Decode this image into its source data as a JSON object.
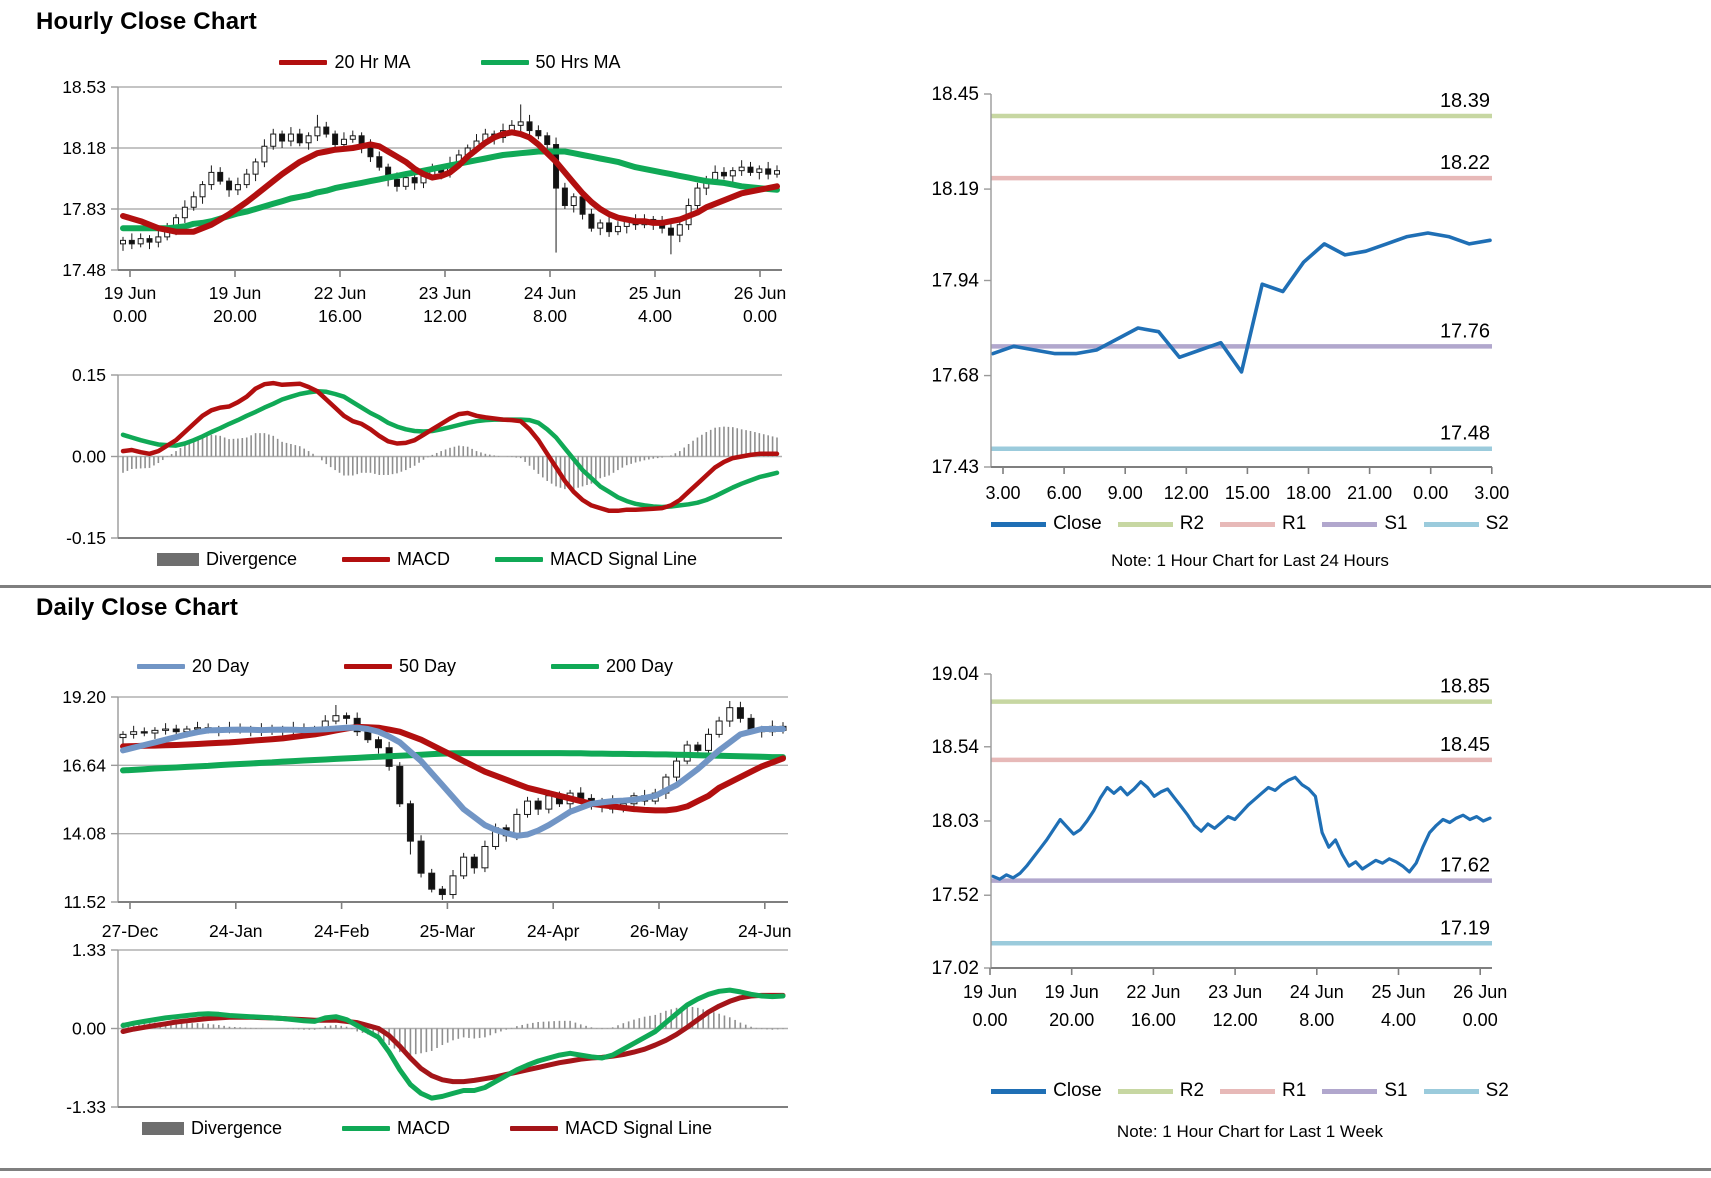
{
  "section1_title": "Hourly Close Chart",
  "section2_title": "Daily Close Chart",
  "colors": {
    "dark_red": "#b20f0f",
    "signal_red": "#a41519",
    "green": "#10a956",
    "ma20_blue": "#7195c5",
    "close_blue": "#1f6fb5",
    "r2_green": "#c7d7a2",
    "r1_pink": "#e7b9b8",
    "s1_purple": "#b1a7cd",
    "s2_blue": "#9bcbdc",
    "divergence_bar": "#8f8f8f",
    "divergence_swatch": "#6e6e6e",
    "grid": "#b0b0b0",
    "axis": "#7f7f7f"
  },
  "chart_data": [
    {
      "type": "candlestick",
      "name": "hourly-close-candlestick",
      "legend": [
        {
          "label": "20 Hr MA",
          "color": "#b20f0f"
        },
        {
          "label": "50 Hrs MA",
          "color": "#10a956"
        }
      ],
      "ylim": [
        17.48,
        18.53
      ],
      "ytick_labels": [
        "18.53",
        "18.18",
        "17.83",
        "17.48"
      ],
      "ytick_values": [
        18.53,
        18.18,
        17.83,
        17.48
      ],
      "xtick_labels_line1": [
        "19 Jun",
        "19 Jun",
        "22 Jun",
        "23 Jun",
        "24 Jun",
        "25 Jun",
        "26 Jun"
      ],
      "xtick_labels_line2": [
        "0.00",
        "20.00",
        "16.00",
        "12.00",
        "8.00",
        "4.00",
        "0.00"
      ],
      "closes": [
        17.65,
        17.63,
        17.66,
        17.64,
        17.67,
        17.72,
        17.78,
        17.84,
        17.9,
        17.97,
        18.04,
        17.99,
        17.94,
        17.97,
        18.03,
        18.1,
        18.19,
        18.26,
        18.22,
        18.26,
        18.21,
        18.25,
        18.3,
        18.26,
        18.2,
        18.23,
        18.25,
        18.19,
        18.13,
        18.07,
        18.0,
        17.96,
        18.01,
        17.98,
        18.02,
        18.06,
        18.04,
        18.09,
        18.14,
        18.18,
        18.22,
        18.26,
        18.24,
        18.28,
        18.31,
        18.33,
        18.28,
        18.25,
        18.2,
        17.95,
        17.85,
        17.9,
        17.8,
        17.72,
        17.75,
        17.7,
        17.73,
        17.76,
        17.74,
        17.77,
        17.75,
        17.72,
        17.68,
        17.74,
        17.85,
        17.95,
        18.0,
        18.04,
        18.02,
        18.05,
        18.07,
        18.04,
        18.06,
        18.03,
        18.05
      ],
      "candle_overrides": {
        "22": {
          "high": 18.37
        },
        "45": {
          "high": 18.43
        },
        "49": {
          "low": 17.58
        },
        "62": {
          "low": 17.57
        }
      },
      "ma20": [
        17.79,
        17.775,
        17.76,
        17.74,
        17.72,
        17.71,
        17.7,
        17.7,
        17.7,
        17.72,
        17.74,
        17.77,
        17.8,
        17.835,
        17.87,
        17.91,
        17.95,
        17.99,
        18.03,
        18.065,
        18.1,
        18.125,
        18.15,
        18.16,
        18.17,
        18.175,
        18.18,
        18.19,
        18.2,
        18.19,
        18.16,
        18.13,
        18.1,
        18.06,
        18.03,
        18.01,
        18.02,
        18.04,
        18.08,
        18.13,
        18.17,
        18.21,
        18.24,
        18.26,
        18.27,
        18.26,
        18.24,
        18.2,
        18.15,
        18.1,
        18.04,
        17.98,
        17.92,
        17.87,
        17.83,
        17.8,
        17.78,
        17.77,
        17.76,
        17.76,
        17.75,
        17.75,
        17.76,
        17.77,
        17.79,
        17.81,
        17.84,
        17.86,
        17.88,
        17.9,
        17.92,
        17.93,
        17.94,
        17.95,
        17.96
      ],
      "ma50": [
        17.72,
        17.72,
        17.72,
        17.72,
        17.72,
        17.72,
        17.725,
        17.73,
        17.745,
        17.75,
        17.76,
        17.775,
        17.79,
        17.805,
        17.815,
        17.83,
        17.845,
        17.86,
        17.875,
        17.89,
        17.9,
        17.91,
        17.925,
        17.935,
        17.95,
        17.96,
        17.97,
        17.98,
        17.99,
        18.0,
        18.01,
        18.02,
        18.03,
        18.04,
        18.05,
        18.06,
        18.07,
        18.08,
        18.09,
        18.1,
        18.11,
        18.12,
        18.13,
        18.14,
        18.145,
        18.15,
        18.155,
        18.16,
        18.16,
        18.16,
        18.16,
        18.15,
        18.14,
        18.13,
        18.12,
        18.11,
        18.1,
        18.085,
        18.07,
        18.06,
        18.05,
        18.04,
        18.03,
        18.02,
        18.01,
        18.0,
        17.99,
        17.985,
        17.98,
        17.97,
        17.96,
        17.955,
        17.95,
        17.945,
        17.94
      ]
    },
    {
      "type": "macd",
      "name": "hourly-macd",
      "legend": [
        {
          "label": "Divergence",
          "color": "#6e6e6e"
        },
        {
          "label": "MACD",
          "color": "#b20f0f"
        },
        {
          "label": "MACD Signal Line",
          "color": "#10a956"
        }
      ],
      "ylim": [
        -0.15,
        0.15
      ],
      "ytick_labels": [
        "0.15",
        "0.00",
        "-0.15"
      ],
      "ytick_values": [
        0.15,
        0.0,
        -0.15
      ],
      "macd": [
        0.01,
        0.012,
        0.008,
        0.005,
        0.01,
        0.02,
        0.03,
        0.045,
        0.06,
        0.075,
        0.085,
        0.09,
        0.092,
        0.1,
        0.11,
        0.125,
        0.133,
        0.135,
        0.132,
        0.133,
        0.134,
        0.128,
        0.12,
        0.105,
        0.09,
        0.075,
        0.065,
        0.06,
        0.05,
        0.038,
        0.028,
        0.024,
        0.025,
        0.03,
        0.04,
        0.05,
        0.06,
        0.07,
        0.078,
        0.08,
        0.075,
        0.072,
        0.07,
        0.068,
        0.067,
        0.065,
        0.05,
        0.03,
        0.005,
        -0.02,
        -0.045,
        -0.065,
        -0.08,
        -0.09,
        -0.095,
        -0.1,
        -0.1,
        -0.098,
        -0.098,
        -0.097,
        -0.096,
        -0.095,
        -0.09,
        -0.08,
        -0.065,
        -0.05,
        -0.035,
        -0.02,
        -0.01,
        -0.003,
        0.0,
        0.003,
        0.005,
        0.005,
        0.005
      ],
      "signal": [
        0.04,
        0.035,
        0.03,
        0.026,
        0.022,
        0.021,
        0.02,
        0.024,
        0.03,
        0.037,
        0.045,
        0.052,
        0.06,
        0.067,
        0.075,
        0.082,
        0.09,
        0.097,
        0.105,
        0.11,
        0.115,
        0.118,
        0.12,
        0.119,
        0.115,
        0.11,
        0.1,
        0.09,
        0.08,
        0.072,
        0.062,
        0.055,
        0.05,
        0.047,
        0.046,
        0.047,
        0.05,
        0.054,
        0.058,
        0.062,
        0.065,
        0.067,
        0.068,
        0.068,
        0.068,
        0.068,
        0.067,
        0.062,
        0.05,
        0.035,
        0.015,
        -0.005,
        -0.025,
        -0.04,
        -0.055,
        -0.065,
        -0.075,
        -0.082,
        -0.087,
        -0.09,
        -0.092,
        -0.093,
        -0.092,
        -0.09,
        -0.088,
        -0.085,
        -0.08,
        -0.073,
        -0.065,
        -0.057,
        -0.05,
        -0.044,
        -0.038,
        -0.034,
        -0.03
      ]
    },
    {
      "type": "line",
      "name": "hourly-pivot-chart",
      "note": "Note: 1 Hour Chart for Last 24 Hours",
      "legend": [
        {
          "label": "Close",
          "color": "#1f6fb5"
        },
        {
          "label": "R2",
          "color": "#c7d7a2"
        },
        {
          "label": "R1",
          "color": "#e7b9b8"
        },
        {
          "label": "S1",
          "color": "#b1a7cd"
        },
        {
          "label": "S2",
          "color": "#9bcbdc"
        }
      ],
      "ylim": [
        17.43,
        18.45
      ],
      "ytick_labels": [
        "18.45",
        "18.19",
        "17.94",
        "17.68",
        "17.43"
      ],
      "ytick_values": [
        18.45,
        18.19,
        17.94,
        17.68,
        17.43
      ],
      "xtick_labels": [
        "3.00",
        "6.00",
        "9.00",
        "12.00",
        "15.00",
        "18.00",
        "21.00",
        "0.00",
        "3.00"
      ],
      "closes": [
        17.74,
        17.76,
        17.75,
        17.74,
        17.74,
        17.75,
        17.78,
        17.81,
        17.8,
        17.73,
        17.75,
        17.77,
        17.69,
        17.93,
        17.91,
        17.99,
        18.04,
        18.01,
        18.02,
        18.04,
        18.06,
        18.07,
        18.06,
        18.04,
        18.05
      ],
      "pivots": [
        {
          "label": "R2",
          "value": 18.39,
          "display": "18.39",
          "color": "#c7d7a2"
        },
        {
          "label": "R1",
          "value": 18.22,
          "display": "18.22",
          "color": "#e7b9b8"
        },
        {
          "label": "S1",
          "value": 17.76,
          "display": "17.76",
          "color": "#b1a7cd"
        },
        {
          "label": "S2",
          "value": 17.48,
          "display": "17.48",
          "color": "#9bcbdc"
        }
      ]
    },
    {
      "type": "candlestick",
      "name": "daily-close-candlestick",
      "legend": [
        {
          "label": "20 Day",
          "color": "#7195c5"
        },
        {
          "label": "50 Day",
          "color": "#b20f0f"
        },
        {
          "label": "200 Day",
          "color": "#10a956"
        }
      ],
      "ylim": [
        11.52,
        19.2
      ],
      "ytick_labels": [
        "19.20",
        "16.64",
        "14.08",
        "11.52"
      ],
      "ytick_values": [
        19.2,
        16.64,
        14.08,
        11.52
      ],
      "xtick_labels_line1": [
        "27-Dec",
        "24-Jan",
        "24-Feb",
        "25-Mar",
        "24-Apr",
        "26-May",
        "24-Jun"
      ],
      "closes": [
        17.8,
        17.9,
        17.85,
        17.95,
        18.0,
        17.9,
        18.0,
        18.05,
        17.95,
        18.0,
        18.05,
        17.95,
        18.0,
        17.9,
        18.0,
        17.95,
        18.05,
        17.95,
        18.0,
        18.3,
        18.5,
        18.4,
        17.9,
        17.6,
        17.3,
        16.6,
        15.2,
        13.8,
        12.6,
        12.0,
        11.8,
        12.5,
        13.2,
        12.8,
        13.6,
        14.3,
        14.0,
        14.8,
        15.3,
        15.0,
        15.5,
        15.2,
        15.6,
        15.4,
        15.1,
        15.3,
        15.0,
        15.2,
        15.5,
        15.3,
        15.6,
        16.2,
        16.8,
        17.4,
        17.2,
        17.8,
        18.3,
        18.8,
        18.4,
        18.0,
        17.9,
        18.1,
        17.95
      ],
      "candle_overrides": {
        "20": {
          "high": 18.9
        },
        "27": {
          "low": 13.3
        },
        "30": {
          "low": 11.6
        },
        "57": {
          "high": 19.05
        }
      },
      "ma20": [
        17.2,
        17.3,
        17.4,
        17.5,
        17.6,
        17.7,
        17.8,
        17.88,
        17.95,
        17.96,
        17.97,
        17.98,
        17.97,
        17.96,
        17.97,
        17.98,
        17.97,
        17.96,
        17.97,
        17.99,
        18.02,
        18.05,
        18.05,
        18.0,
        17.9,
        17.72,
        17.5,
        17.15,
        16.8,
        16.35,
        15.9,
        15.45,
        15.0,
        14.7,
        14.4,
        14.22,
        14.1,
        14.0,
        14.05,
        14.2,
        14.4,
        14.65,
        14.9,
        15.05,
        15.2,
        15.25,
        15.3,
        15.32,
        15.35,
        15.42,
        15.5,
        15.7,
        15.9,
        16.2,
        16.5,
        16.85,
        17.2,
        17.5,
        17.8,
        17.9,
        18.0,
        18.0,
        18.0
      ],
      "ma50": [
        17.35,
        17.36,
        17.37,
        17.38,
        17.39,
        17.4,
        17.42,
        17.44,
        17.46,
        17.48,
        17.5,
        17.53,
        17.56,
        17.59,
        17.62,
        17.65,
        17.7,
        17.75,
        17.8,
        17.87,
        17.95,
        18.02,
        18.08,
        18.07,
        18.05,
        17.98,
        17.9,
        17.75,
        17.6,
        17.4,
        17.2,
        17.0,
        16.8,
        16.6,
        16.4,
        16.25,
        16.1,
        15.95,
        15.8,
        15.7,
        15.6,
        15.5,
        15.4,
        15.3,
        15.2,
        15.15,
        15.1,
        15.05,
        15.0,
        14.97,
        14.95,
        14.95,
        15.0,
        15.1,
        15.3,
        15.5,
        15.8,
        16.0,
        16.2,
        16.4,
        16.6,
        16.75,
        16.9
      ],
      "ma200": [
        16.45,
        16.47,
        16.49,
        16.52,
        16.54,
        16.56,
        16.58,
        16.6,
        16.62,
        16.65,
        16.67,
        16.69,
        16.71,
        16.73,
        16.75,
        16.78,
        16.8,
        16.82,
        16.84,
        16.86,
        16.88,
        16.9,
        16.92,
        16.94,
        16.96,
        16.98,
        17.0,
        17.02,
        17.04,
        17.06,
        17.08,
        17.09,
        17.1,
        17.1,
        17.1,
        17.1,
        17.1,
        17.1,
        17.1,
        17.1,
        17.1,
        17.1,
        17.09,
        17.09,
        17.08,
        17.08,
        17.07,
        17.07,
        17.06,
        17.06,
        17.05,
        17.05,
        17.04,
        17.03,
        17.02,
        17.01,
        17.0,
        16.99,
        16.98,
        16.97,
        16.96,
        16.95,
        16.95
      ]
    },
    {
      "type": "macd",
      "name": "daily-macd",
      "legend": [
        {
          "label": "Divergence",
          "color": "#6e6e6e"
        },
        {
          "label": "MACD",
          "color": "#10a956"
        },
        {
          "label": "MACD Signal Line",
          "color": "#a41519"
        }
      ],
      "ylim": [
        -1.33,
        1.33
      ],
      "ytick_labels": [
        "1.33",
        "0.00",
        "-1.33"
      ],
      "ytick_values": [
        1.33,
        0.0,
        -1.33
      ],
      "macd": [
        0.05,
        0.09,
        0.12,
        0.15,
        0.18,
        0.2,
        0.22,
        0.24,
        0.25,
        0.24,
        0.22,
        0.21,
        0.2,
        0.19,
        0.18,
        0.17,
        0.15,
        0.13,
        0.12,
        0.18,
        0.2,
        0.15,
        0.05,
        -0.05,
        -0.15,
        -0.4,
        -0.7,
        -0.95,
        -1.1,
        -1.18,
        -1.15,
        -1.1,
        -1.05,
        -1.05,
        -1.0,
        -0.9,
        -0.8,
        -0.7,
        -0.62,
        -0.55,
        -0.5,
        -0.45,
        -0.42,
        -0.45,
        -0.48,
        -0.5,
        -0.45,
        -0.35,
        -0.25,
        -0.15,
        -0.05,
        0.1,
        0.25,
        0.4,
        0.5,
        0.58,
        0.63,
        0.65,
        0.62,
        0.58,
        0.55,
        0.54,
        0.55
      ],
      "signal": [
        -0.05,
        -0.01,
        0.02,
        0.05,
        0.08,
        0.11,
        0.13,
        0.15,
        0.17,
        0.18,
        0.19,
        0.19,
        0.19,
        0.185,
        0.18,
        0.17,
        0.16,
        0.15,
        0.14,
        0.14,
        0.14,
        0.12,
        0.1,
        0.05,
        0.0,
        -0.12,
        -0.3,
        -0.5,
        -0.68,
        -0.8,
        -0.87,
        -0.9,
        -0.9,
        -0.88,
        -0.85,
        -0.82,
        -0.78,
        -0.74,
        -0.7,
        -0.66,
        -0.62,
        -0.58,
        -0.55,
        -0.52,
        -0.5,
        -0.49,
        -0.47,
        -0.44,
        -0.4,
        -0.35,
        -0.28,
        -0.2,
        -0.1,
        0.02,
        0.15,
        0.28,
        0.38,
        0.46,
        0.52,
        0.55,
        0.56,
        0.56,
        0.56
      ]
    },
    {
      "type": "line",
      "name": "weekly-pivot-chart",
      "note": "Note: 1 Hour Chart for Last 1 Week",
      "legend": [
        {
          "label": "Close",
          "color": "#1f6fb5"
        },
        {
          "label": "R2",
          "color": "#c7d7a2"
        },
        {
          "label": "R1",
          "color": "#e7b9b8"
        },
        {
          "label": "S1",
          "color": "#b1a7cd"
        },
        {
          "label": "S2",
          "color": "#9bcbdc"
        }
      ],
      "ylim": [
        17.02,
        19.04
      ],
      "ytick_labels": [
        "19.04",
        "18.54",
        "18.03",
        "17.52",
        "17.02"
      ],
      "ytick_values": [
        19.04,
        18.54,
        18.03,
        17.52,
        17.02
      ],
      "xtick_labels_line1": [
        "19 Jun",
        "19 Jun",
        "22 Jun",
        "23 Jun",
        "24 Jun",
        "25 Jun",
        "26 Jun"
      ],
      "xtick_labels_line2": [
        "0.00",
        "20.00",
        "16.00",
        "12.00",
        "8.00",
        "4.00",
        "0.00"
      ],
      "closes": [
        17.65,
        17.63,
        17.66,
        17.64,
        17.67,
        17.72,
        17.78,
        17.84,
        17.9,
        17.97,
        18.04,
        17.99,
        17.94,
        17.97,
        18.03,
        18.1,
        18.19,
        18.26,
        18.22,
        18.26,
        18.21,
        18.25,
        18.3,
        18.26,
        18.2,
        18.23,
        18.25,
        18.19,
        18.13,
        18.07,
        18.0,
        17.96,
        18.01,
        17.98,
        18.02,
        18.06,
        18.04,
        18.09,
        18.14,
        18.18,
        18.22,
        18.26,
        18.24,
        18.28,
        18.31,
        18.33,
        18.28,
        18.25,
        18.2,
        17.95,
        17.85,
        17.9,
        17.8,
        17.72,
        17.75,
        17.7,
        17.73,
        17.76,
        17.74,
        17.77,
        17.75,
        17.72,
        17.68,
        17.74,
        17.85,
        17.95,
        18.0,
        18.04,
        18.02,
        18.05,
        18.07,
        18.04,
        18.06,
        18.03,
        18.05
      ],
      "pivots": [
        {
          "label": "R2",
          "value": 18.85,
          "display": "18.85",
          "color": "#c7d7a2"
        },
        {
          "label": "R1",
          "value": 18.45,
          "display": "18.45",
          "color": "#e7b9b8"
        },
        {
          "label": "S1",
          "value": 17.62,
          "display": "17.62",
          "color": "#b1a7cd"
        },
        {
          "label": "S2",
          "value": 17.19,
          "display": "17.19",
          "color": "#9bcbdc"
        }
      ]
    }
  ]
}
